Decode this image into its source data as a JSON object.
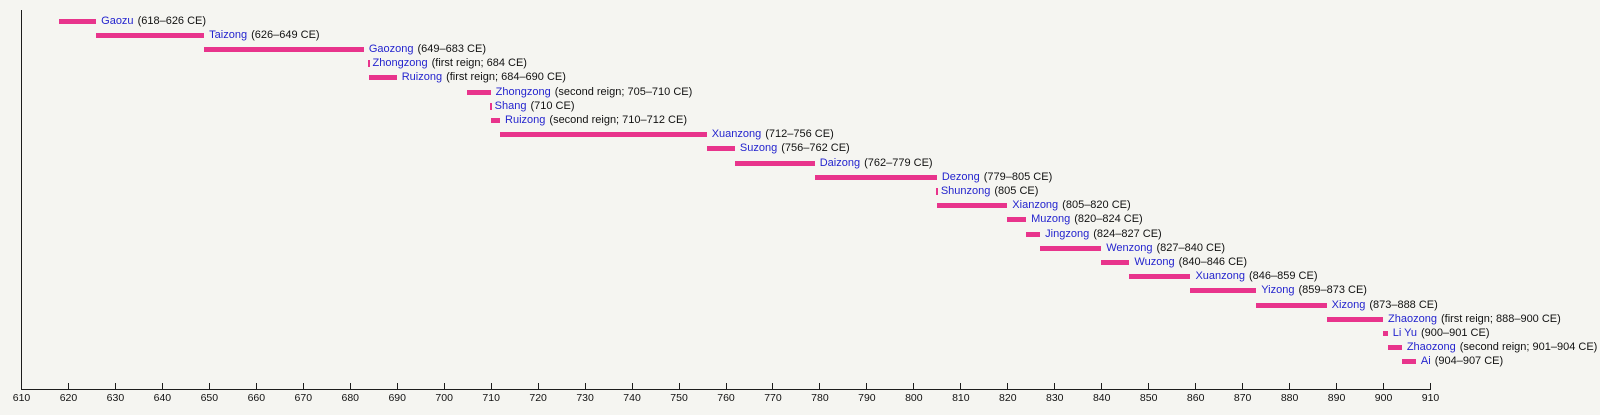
{
  "chart_data": {
    "type": "bar",
    "subtype": "timeline-gantt",
    "title": "",
    "xlabel": "",
    "ylabel": "",
    "legend": "none",
    "grid": "off",
    "axis": {
      "min": 610,
      "max": 910,
      "tick_step": 10,
      "tick_labels": [
        "610",
        "620",
        "630",
        "640",
        "650",
        "660",
        "670",
        "680",
        "690",
        "700",
        "710",
        "720",
        "730",
        "740",
        "750",
        "760",
        "770",
        "780",
        "790",
        "800",
        "810",
        "820",
        "830",
        "840",
        "850",
        "860",
        "870",
        "880",
        "890",
        "900",
        "910"
      ],
      "unit": "CE"
    },
    "colors": {
      "bar": "#e8348c",
      "emperor_name": "#2424ce",
      "reign_dates": "#111111",
      "axis": "#1c1c1c",
      "background": "#f5f5f1"
    },
    "bars": [
      {
        "name": "Gaozu",
        "dates": "(618–626 CE)",
        "start": 618,
        "end": 626
      },
      {
        "name": "Taizong",
        "dates": "(626–649 CE)",
        "start": 626,
        "end": 649
      },
      {
        "name": "Gaozong",
        "dates": "(649–683 CE)",
        "start": 649,
        "end": 683
      },
      {
        "name": "Zhongzong",
        "dates": "(first reign; 684 CE)",
        "start": 684,
        "end": 684
      },
      {
        "name": "Ruizong",
        "dates": "(first reign; 684–690 CE)",
        "start": 684,
        "end": 690
      },
      {
        "name": "Zhongzong",
        "dates": "(second reign; 705–710 CE)",
        "start": 705,
        "end": 710
      },
      {
        "name": "Shang",
        "dates": "(710 CE)",
        "start": 710,
        "end": 710
      },
      {
        "name": "Ruizong",
        "dates": "(second reign; 710–712 CE)",
        "start": 710,
        "end": 712
      },
      {
        "name": "Xuanzong",
        "dates": "(712–756 CE)",
        "start": 712,
        "end": 756
      },
      {
        "name": "Suzong",
        "dates": "(756–762 CE)",
        "start": 756,
        "end": 762
      },
      {
        "name": "Daizong",
        "dates": "(762–779 CE)",
        "start": 762,
        "end": 779
      },
      {
        "name": "Dezong",
        "dates": "(779–805 CE)",
        "start": 779,
        "end": 805
      },
      {
        "name": "Shunzong",
        "dates": "(805 CE)",
        "start": 805,
        "end": 805
      },
      {
        "name": "Xianzong",
        "dates": "(805–820 CE)",
        "start": 805,
        "end": 820
      },
      {
        "name": "Muzong",
        "dates": "(820–824 CE)",
        "start": 820,
        "end": 824
      },
      {
        "name": "Jingzong",
        "dates": "(824–827 CE)",
        "start": 824,
        "end": 827
      },
      {
        "name": "Wenzong",
        "dates": "(827–840 CE)",
        "start": 827,
        "end": 840
      },
      {
        "name": "Wuzong",
        "dates": "(840–846 CE)",
        "start": 840,
        "end": 846
      },
      {
        "name": "Xuanzong",
        "dates": "(846–859 CE)",
        "start": 846,
        "end": 859
      },
      {
        "name": "Yizong",
        "dates": "(859–873 CE)",
        "start": 859,
        "end": 873
      },
      {
        "name": "Xizong",
        "dates": "(873–888 CE)",
        "start": 873,
        "end": 888
      },
      {
        "name": "Zhaozong",
        "dates": "(first reign; 888–900 CE)",
        "start": 888,
        "end": 900
      },
      {
        "name": "Li Yu",
        "dates": "(900–901 CE)",
        "start": 900,
        "end": 901
      },
      {
        "name": "Zhaozong",
        "dates": "(second reign; 901–904 CE)",
        "start": 901,
        "end": 904
      },
      {
        "name": "Ai",
        "dates": "(904–907 CE)",
        "start": 904,
        "end": 907
      }
    ]
  }
}
